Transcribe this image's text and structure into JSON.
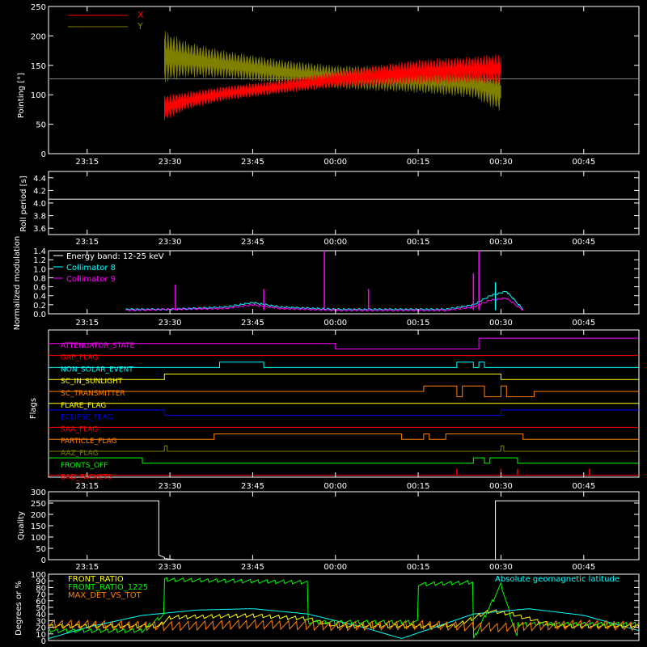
{
  "chart_data": [
    {
      "type": "line",
      "panel": "pointing",
      "ylabel": "Pointing [°]",
      "ylim": [
        0,
        250
      ],
      "yticks": [
        0,
        50,
        100,
        150,
        200,
        250
      ],
      "xlim": [
        "23:08",
        "00:55"
      ],
      "xticks": [
        "23:15",
        "23:30",
        "23:45",
        "00:00",
        "00:15",
        "00:30",
        "00:45"
      ],
      "legend": [
        {
          "name": "X",
          "color": "#ff0000"
        },
        {
          "name": "Y",
          "color": "#808000"
        }
      ],
      "baseline": 127,
      "series": [
        {
          "name": "X",
          "color": "#ff0000",
          "x": [
            "23:29",
            "23:33",
            "23:40",
            "23:50",
            "00:00",
            "00:15",
            "00:25",
            "00:30"
          ],
          "upper": [
            100,
            105,
            115,
            125,
            140,
            160,
            165,
            170
          ],
          "lower": [
            55,
            75,
            90,
            102,
            112,
            118,
            120,
            118
          ]
        },
        {
          "name": "Y",
          "color": "#808000",
          "x": [
            "23:29",
            "23:33",
            "23:40",
            "23:50",
            "00:00",
            "00:15",
            "00:25",
            "00:30"
          ],
          "upper": [
            210,
            190,
            175,
            160,
            150,
            148,
            145,
            140
          ],
          "lower": [
            120,
            130,
            128,
            118,
            110,
            103,
            95,
            70
          ]
        }
      ]
    },
    {
      "type": "line",
      "panel": "roll",
      "ylabel": "Roll period [s]",
      "ylim": [
        3.5,
        4.5
      ],
      "yticks": [
        3.6,
        3.8,
        4.0,
        4.2,
        4.4
      ],
      "xticks": [
        "23:15",
        "23:30",
        "23:45",
        "00:00",
        "00:15",
        "00:30",
        "00:45"
      ],
      "series": [
        {
          "name": "roll",
          "color": "#ffffff",
          "x": [
            "23:08",
            "00:55"
          ],
          "values": [
            4.06,
            4.06
          ]
        }
      ]
    },
    {
      "type": "line",
      "panel": "modulation",
      "ylabel": "Normalized modulation",
      "ylim": [
        0,
        1.4
      ],
      "yticks": [
        0.0,
        0.2,
        0.4,
        0.6,
        0.8,
        1.0,
        1.2,
        1.4
      ],
      "xticks": [
        "23:15",
        "23:30",
        "23:45",
        "00:00",
        "00:15",
        "00:30",
        "00:45"
      ],
      "legend_text": [
        "Energy band: 12-25 keV",
        "Collimator 8",
        "Collimator 9"
      ],
      "legend_colors": [
        "#ffffff",
        "#00ffff",
        "#ff00ff"
      ],
      "series": [
        {
          "name": "Collimator 8",
          "color": "#00ffff",
          "x": [
            "23:22",
            "23:30",
            "23:40",
            "23:45",
            "23:50",
            "00:00",
            "00:10",
            "00:20",
            "00:25",
            "00:28",
            "00:31",
            "00:34"
          ],
          "values": [
            0.1,
            0.1,
            0.15,
            0.25,
            0.15,
            0.1,
            0.1,
            0.1,
            0.2,
            0.4,
            0.5,
            0.1
          ]
        },
        {
          "name": "Collimator 9",
          "color": "#ff00ff",
          "x": [
            "23:22",
            "23:30",
            "23:40",
            "23:45",
            "23:50",
            "00:00",
            "00:10",
            "00:20",
            "00:25",
            "00:28",
            "00:31",
            "00:34"
          ],
          "values": [
            0.08,
            0.1,
            0.12,
            0.2,
            0.12,
            0.08,
            0.08,
            0.08,
            0.15,
            0.3,
            0.35,
            0.08
          ]
        }
      ],
      "spikes": [
        {
          "x": "23:31",
          "v": 0.65,
          "color": "#ff00ff"
        },
        {
          "x": "23:58",
          "v": 1.4,
          "color": "#ff00ff"
        },
        {
          "x": "00:06",
          "v": 0.55,
          "color": "#ff00ff"
        },
        {
          "x": "00:26",
          "v": 1.4,
          "color": "#ff00ff"
        },
        {
          "x": "00:25",
          "v": 0.9,
          "color": "#ff00ff"
        },
        {
          "x": "00:29",
          "v": 0.7,
          "color": "#00ffff"
        },
        {
          "x": "23:47",
          "v": 0.55,
          "color": "#ff00ff"
        }
      ]
    },
    {
      "type": "line",
      "panel": "flags",
      "ylabel": "Flags",
      "xticks": [
        "23:15",
        "23:30",
        "23:45",
        "00:00",
        "00:15",
        "00:30",
        "00:45"
      ],
      "series": [
        {
          "name": "ATTENUATOR_STATE",
          "color": "#ff00ff",
          "x": [
            "23:08",
            "00:00",
            "00:00",
            "00:26",
            "00:26",
            "00:55"
          ],
          "values": [
            0,
            0,
            -1,
            -1,
            1,
            1
          ]
        },
        {
          "name": "GAP_FLAG",
          "color": "#ff0000",
          "x": [
            "23:08",
            "00:55"
          ],
          "values": [
            0,
            0
          ]
        },
        {
          "name": "NON_SOLAR_EVENT",
          "color": "#00ffff",
          "x": [
            "23:08",
            "23:39",
            "23:39",
            "23:47",
            "23:47",
            "00:22",
            "00:22",
            "00:25",
            "00:25",
            "00:26",
            "00:26",
            "00:27",
            "00:27",
            "00:55"
          ],
          "values": [
            0,
            0,
            1,
            1,
            0,
            0,
            1,
            1,
            0,
            0,
            1,
            1,
            0,
            0
          ]
        },
        {
          "name": "SC_IN_SUNLIGHT",
          "color": "#ffff00",
          "x": [
            "23:08",
            "23:29",
            "23:29",
            "00:30",
            "00:30",
            "00:55"
          ],
          "values": [
            0,
            0,
            1,
            1,
            0,
            0
          ]
        },
        {
          "name": "SC_TRANSMITTER",
          "color": "#ff8000",
          "x": [
            "23:08",
            "00:16",
            "00:16",
            "00:22",
            "00:22",
            "00:23",
            "00:23",
            "00:27",
            "00:27",
            "00:30",
            "00:30",
            "00:31",
            "00:31",
            "00:36",
            "00:36",
            "00:55"
          ],
          "values": [
            0,
            0,
            1,
            1,
            -1,
            -1,
            1,
            1,
            -1,
            -1,
            1,
            1,
            -1,
            -1,
            0,
            0
          ]
        },
        {
          "name": "FLARE_FLAG",
          "color": "#ffff00",
          "x": [
            "23:08",
            "00:55"
          ],
          "values": [
            0,
            0
          ]
        },
        {
          "name": "ECLIPSE_FLAG",
          "color": "#0000ff",
          "x": [
            "23:08",
            "23:29",
            "23:29",
            "00:30",
            "00:30",
            "00:55"
          ],
          "values": [
            1,
            1,
            0,
            0,
            1,
            1
          ]
        },
        {
          "name": "SAA_FLAG",
          "color": "#ff0000",
          "x": [
            "23:08",
            "00:55"
          ],
          "values": [
            0,
            0
          ]
        },
        {
          "name": "PARTICLE_FLAG",
          "color": "#ff8000",
          "x": [
            "23:08",
            "23:38",
            "23:38",
            "00:12",
            "00:12",
            "00:16",
            "00:16",
            "00:17",
            "00:17",
            "00:20",
            "00:20",
            "00:34",
            "00:34",
            "00:55"
          ],
          "values": [
            0,
            0,
            1,
            1,
            0,
            0,
            1,
            1,
            0,
            0,
            1,
            1,
            0,
            0
          ]
        },
        {
          "name": "AAZ_FLAG",
          "color": "#808000",
          "x": [
            "23:08",
            "23:29",
            "23:29",
            "23:29.5",
            "23:29.5",
            "00:30",
            "00:30",
            "00:30.5",
            "00:30.5",
            "00:55"
          ],
          "values": [
            0,
            0,
            1,
            1,
            0,
            0,
            1,
            1,
            0,
            0
          ]
        },
        {
          "name": "FRONTS_OFF",
          "color": "#00ff00",
          "x": [
            "23:08",
            "23:25",
            "23:25",
            "00:25",
            "00:25",
            "00:27",
            "00:27",
            "00:28",
            "00:28",
            "00:33",
            "00:33",
            "00:55"
          ],
          "values": [
            1,
            1,
            0,
            0,
            1,
            1,
            0,
            0,
            1,
            1,
            0,
            0
          ]
        },
        {
          "name": "BAD_PACKETS",
          "color": "#ff0000",
          "x": [
            "23:08",
            "00:55"
          ],
          "values": [
            0,
            0
          ]
        }
      ],
      "bad_packet_ticks": [
        "00:22",
        "00:30",
        "00:33",
        "00:46"
      ]
    },
    {
      "type": "line",
      "panel": "quality",
      "ylabel": "Quality",
      "ylim": [
        0,
        300
      ],
      "yticks": [
        0,
        50,
        100,
        150,
        200,
        250,
        300
      ],
      "xticks": [
        "23:15",
        "23:30",
        "23:45",
        "00:00",
        "00:15",
        "00:30",
        "00:45"
      ],
      "series": [
        {
          "name": "Quality",
          "color": "#ffffff",
          "x": [
            "23:08",
            "23:28",
            "23:28",
            "23:29",
            "23:29",
            "23:31",
            "23:31",
            "00:29",
            "00:29",
            "00:55"
          ],
          "values": [
            260,
            260,
            20,
            10,
            5,
            0,
            0,
            0,
            260,
            260
          ]
        }
      ]
    },
    {
      "type": "line",
      "panel": "geomag",
      "ylabel": "Degrees or %",
      "ylim": [
        0,
        100
      ],
      "yticks": [
        0,
        10,
        20,
        30,
        40,
        50,
        60,
        70,
        80,
        90,
        100
      ],
      "xticks": [
        "23:15",
        "23:30",
        "23:45",
        "00:00",
        "00:15",
        "00:30",
        "00:45"
      ],
      "legend_text": [
        "FRONT_RATIO",
        "FRONT_RATIO_1225",
        "MAX_DET_VS_TOT",
        "Absolute geomagnetic latitude"
      ],
      "legend_colors": [
        "#ffff00",
        "#00ff00",
        "#ff8000",
        "#00ffff"
      ],
      "series": [
        {
          "name": "Absolute geomagnetic latitude",
          "color": "#00ffff",
          "x": [
            "23:08",
            "23:15",
            "23:25",
            "23:35",
            "23:45",
            "23:55",
            "00:05",
            "00:12",
            "00:18",
            "00:25",
            "00:35",
            "00:45",
            "00:55"
          ],
          "values": [
            3,
            20,
            38,
            46,
            48,
            40,
            20,
            3,
            20,
            40,
            48,
            38,
            15
          ]
        },
        {
          "name": "FRONT_RATIO",
          "color": "#ffff00",
          "x": [
            "23:08",
            "23:28",
            "23:30",
            "23:45",
            "23:55",
            "00:00",
            "00:15",
            "00:22",
            "00:28",
            "00:32",
            "00:40",
            "00:55"
          ],
          "values": [
            22,
            22,
            35,
            38,
            33,
            22,
            22,
            23,
            45,
            40,
            22,
            22
          ]
        },
        {
          "name": "FRONT_RATIO_1225",
          "color": "#00ff00",
          "x": [
            "23:08",
            "23:25",
            "23:29",
            "23:29",
            "23:55",
            "23:55",
            "00:15",
            "00:15",
            "00:25",
            "00:25",
            "00:30",
            "00:33",
            "00:33",
            "00:55"
          ],
          "values": [
            15,
            15,
            40,
            92,
            88,
            28,
            28,
            85,
            88,
            2,
            85,
            2,
            25,
            25
          ]
        },
        {
          "name": "MAX_DET_VS_TOT",
          "color": "#ff8000",
          "x": [
            "23:08",
            "23:30",
            "23:45",
            "00:00",
            "00:15",
            "00:30",
            "00:45",
            "00:55"
          ],
          "values": [
            25,
            22,
            25,
            22,
            24,
            20,
            25,
            22
          ]
        }
      ]
    }
  ]
}
